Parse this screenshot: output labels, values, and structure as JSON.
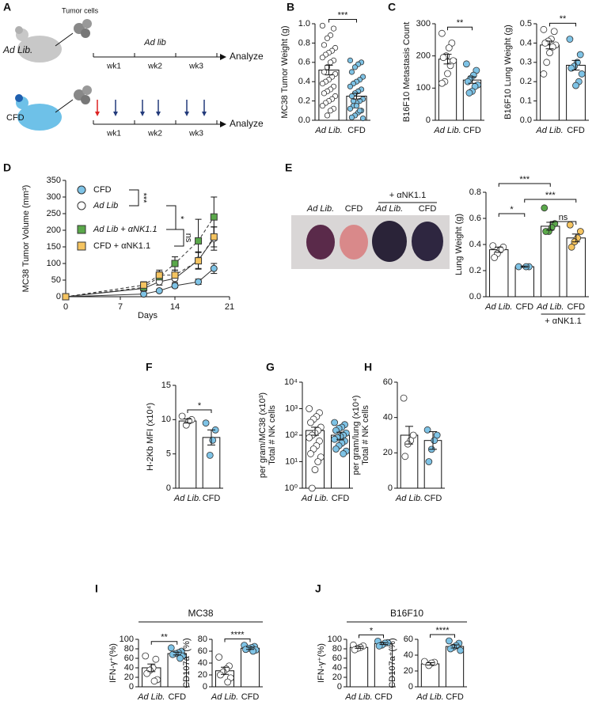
{
  "panel_labels": [
    "A",
    "B",
    "C",
    "D",
    "E",
    "F",
    "G",
    "H",
    "I",
    "J"
  ],
  "schematic": {
    "tumor_cells": "Tumor cells",
    "rows": [
      {
        "label": "Ad Lib.",
        "regimen": "Ad lib",
        "weeks": [
          "wk1",
          "wk2",
          "wk3"
        ],
        "end": "Analyze"
      },
      {
        "label": "CFD",
        "weeks": [
          "wk1",
          "wk2",
          "wk3"
        ],
        "end": "Analyze"
      }
    ]
  },
  "photo": {
    "group_label": "+ αNK1.1",
    "labels": [
      "Ad Lib.",
      "CFD",
      "Ad Lib.",
      "CFD"
    ]
  },
  "chart_data": [
    {
      "type": "bar",
      "ylabel": "MC38 Tumor Weight (g)",
      "categories": [
        "Ad Lib.",
        "CFD"
      ],
      "values": [
        0.52,
        0.25
      ],
      "errors": [
        0.05,
        0.03
      ],
      "colors": [
        "#ffffff",
        "#7ec3e6"
      ],
      "points": [
        [
          0.98,
          0.95,
          0.88,
          0.85,
          0.78,
          0.75,
          0.72,
          0.7,
          0.68,
          0.65,
          0.62,
          0.6,
          0.55,
          0.5,
          0.48,
          0.45,
          0.42,
          0.4,
          0.38,
          0.35,
          0.32,
          0.3,
          0.28,
          0.25,
          0.22,
          0.2,
          0.18,
          0.15,
          0.12,
          0.1,
          0.05
        ],
        [
          0.62,
          0.6,
          0.58,
          0.55,
          0.5,
          0.45,
          0.42,
          0.4,
          0.38,
          0.35,
          0.32,
          0.3,
          0.28,
          0.25,
          0.22,
          0.2,
          0.18,
          0.15,
          0.12,
          0.1,
          0.08,
          0.05,
          0.03,
          0.02,
          0.1,
          0.15,
          0.2
        ]
      ],
      "ylim": [
        0,
        1.0
      ],
      "yticks": [
        {
          "value": 0,
          "label": "0.0"
        },
        0.2,
        0.4,
        0.6,
        0.8,
        {
          "value": 1,
          "label": "1.0"
        }
      ],
      "significance": [
        "***"
      ]
    },
    {
      "type": "bar",
      "ylabel": "B16F10 Metastasis Count",
      "categories": [
        "Ad Lib.",
        "CFD"
      ],
      "values": [
        190,
        125
      ],
      "errors": [
        15,
        10
      ],
      "colors": [
        "#ffffff",
        "#7ec3e6"
      ],
      "points": [
        [
          270,
          240,
          225,
          200,
          195,
          185,
          170,
          145,
          120,
          115
        ],
        [
          175,
          155,
          140,
          130,
          120,
          110,
          105,
          90,
          85
        ]
      ],
      "ylim": [
        0,
        300
      ],
      "yticks": [
        0,
        100,
        200,
        300
      ],
      "significance": [
        "**"
      ]
    },
    {
      "type": "bar",
      "ylabel": "B16F10 Lung Weight (g)",
      "categories": [
        "Ad Lib.",
        "CFD"
      ],
      "values": [
        0.39,
        0.285
      ],
      "errors": [
        0.02,
        0.025
      ],
      "colors": [
        "#ffffff",
        "#7ec3e6"
      ],
      "points": [
        [
          0.47,
          0.46,
          0.42,
          0.41,
          0.4,
          0.39,
          0.38,
          0.35,
          0.3,
          0.24
        ],
        [
          0.42,
          0.34,
          0.3,
          0.28,
          0.27,
          0.24,
          0.2,
          0.18
        ]
      ],
      "ylim": [
        0,
        0.5
      ],
      "yticks": [
        {
          "value": 0,
          "label": "0.0"
        },
        0.1,
        0.2,
        0.3,
        0.4,
        0.5
      ],
      "significance": [
        "**"
      ]
    },
    {
      "type": "line",
      "ylabel": "MC38 Tumor Volume (mm³)",
      "xlabel": "Days",
      "x": [
        0,
        10,
        12,
        14,
        17,
        19
      ],
      "series": [
        {
          "name": "CFD",
          "color": "#7ec3e6",
          "marker": "circle",
          "linestyle": "solid",
          "values": [
            0,
            8,
            18,
            33,
            45,
            85
          ],
          "errors": [
            0,
            3,
            4,
            6,
            8,
            15
          ]
        },
        {
          "name": "Ad Lib",
          "color": "#ffffff",
          "marker": "circle",
          "linestyle": "solid",
          "values": [
            0,
            25,
            45,
            55,
            110,
            175
          ],
          "errors": [
            0,
            8,
            10,
            12,
            25,
            35
          ]
        },
        {
          "name": "Ad Lib + αNK1.1",
          "color": "#5aa84a",
          "marker": "square",
          "linestyle": "dashed",
          "values": [
            0,
            28,
            60,
            100,
            168,
            240
          ],
          "errors": [
            0,
            8,
            15,
            20,
            65,
            60
          ]
        },
        {
          "name": "CFD + αNK1.1",
          "color": "#f5c460",
          "marker": "square",
          "linestyle": "dashed",
          "values": [
            0,
            35,
            65,
            65,
            108,
            180
          ],
          "errors": [
            0,
            10,
            15,
            15,
            25,
            30
          ]
        }
      ],
      "xlim": [
        0,
        21
      ],
      "xticks": [
        0,
        7,
        14,
        21
      ],
      "ylim": [
        0,
        350
      ],
      "yticks": [
        0,
        50,
        100,
        150,
        200,
        250,
        300,
        350
      ],
      "significance": [
        "***",
        "*",
        "ns"
      ]
    },
    {
      "type": "bar",
      "ylabel": "Lung Weight (g)",
      "categories": [
        "Ad Lib.",
        "CFD",
        "Ad Lib.",
        "CFD"
      ],
      "group_label": "+ αNK1.1",
      "values": [
        0.36,
        0.23,
        0.54,
        0.45
      ],
      "errors": [
        0.02,
        0.005,
        0.03,
        0.03
      ],
      "colors": [
        "#ffffff",
        "#7ec3e6",
        "#5aa84a",
        "#f5c460"
      ],
      "points": [
        [
          0.39,
          0.38,
          0.36,
          0.33,
          0.3
        ],
        [
          0.23,
          0.23,
          0.23
        ],
        [
          0.68,
          0.56,
          0.53,
          0.5,
          0.5
        ],
        [
          0.55,
          0.5,
          0.45,
          0.42,
          0.38
        ]
      ],
      "ylim": [
        0,
        0.8
      ],
      "yticks": [
        {
          "value": 0,
          "label": "0.0"
        },
        0.2,
        0.4,
        0.6,
        0.8
      ],
      "significance": [
        "***",
        "*",
        "***",
        "ns"
      ]
    },
    {
      "type": "bar",
      "ylabel": "H-2Kb MFI (x10⁴)",
      "categories": [
        "Ad Lib.",
        "CFD"
      ],
      "values": [
        9.8,
        7.4
      ],
      "errors": [
        0.3,
        1.1
      ],
      "colors": [
        "#ffffff",
        "#7ec3e6"
      ],
      "points": [
        [
          10.5,
          10,
          9.8,
          9.2
        ],
        [
          9.5,
          8.5,
          7,
          4.8
        ]
      ],
      "ylim": [
        0,
        15
      ],
      "yticks": [
        0,
        5,
        10,
        15
      ],
      "significance": [
        "*"
      ]
    },
    {
      "type": "bar",
      "ylabel": [
        "Total # NK cells",
        "per gram/MC38 (x10³)"
      ],
      "log_scale": true,
      "categories": [
        "Ad Lib.",
        "CFD"
      ],
      "values": [
        150,
        100
      ],
      "errors": [
        50,
        30
      ],
      "colors": [
        "#ffffff",
        "#7ec3e6"
      ],
      "points": [
        [
          1000,
          700,
          500,
          400,
          300,
          200,
          150,
          120,
          100,
          80,
          60,
          40,
          30,
          20,
          15,
          10,
          5,
          1
        ],
        [
          300,
          250,
          200,
          180,
          150,
          120,
          100,
          90,
          80,
          70,
          60,
          50,
          40,
          30,
          25,
          20
        ]
      ],
      "ylim": [
        1,
        10000
      ],
      "yticks": [
        {
          "value": 1,
          "label": "10⁰"
        },
        {
          "value": 10,
          "label": "10¹"
        },
        {
          "value": 100,
          "label": "10²"
        },
        {
          "value": 1000,
          "label": "10³"
        },
        {
          "value": 10000,
          "label": "10⁴"
        }
      ]
    },
    {
      "type": "bar",
      "ylabel": [
        "Total # NK cells",
        "per gram/lung (x10⁴)"
      ],
      "categories": [
        "Ad Lib.",
        "CFD"
      ],
      "values": [
        30,
        27
      ],
      "errors": [
        5,
        5
      ],
      "colors": [
        "#ffffff",
        "#7ec3e6"
      ],
      "points": [
        [
          51,
          30,
          27,
          25,
          18
        ],
        [
          33,
          30,
          27,
          22,
          15
        ]
      ],
      "ylim": [
        0,
        60
      ],
      "yticks": [
        0,
        20,
        40,
        60
      ]
    },
    {
      "type": "bar",
      "ylabel": "IFN-γ⁺(%)",
      "group_title": "MC38",
      "categories": [
        "Ad Lib.",
        "CFD"
      ],
      "values": [
        40,
        70
      ],
      "errors": [
        8,
        3
      ],
      "colors": [
        "#ffffff",
        "#7ec3e6"
      ],
      "points": [
        [
          65,
          58,
          40,
          35,
          28,
          15,
          12
        ],
        [
          82,
          75,
          72,
          70,
          68,
          65,
          60
        ]
      ],
      "ylim": [
        0,
        100
      ],
      "yticks": [
        0,
        20,
        40,
        60,
        80,
        100
      ],
      "significance": [
        "**"
      ]
    },
    {
      "type": "bar",
      "ylabel": "CD107a⁺(%)",
      "categories": [
        "Ad Lib.",
        "CFD"
      ],
      "values": [
        27,
        65
      ],
      "errors": [
        6,
        2
      ],
      "colors": [
        "#ffffff",
        "#7ec3e6"
      ],
      "points": [
        [
          50,
          35,
          30,
          25,
          20,
          15,
          8
        ],
        [
          70,
          68,
          66,
          65,
          63,
          62,
          60
        ]
      ],
      "ylim": [
        0,
        80
      ],
      "yticks": [
        0,
        20,
        40,
        60,
        80
      ],
      "significance": [
        "****"
      ]
    },
    {
      "type": "bar",
      "ylabel": "IFN-γ⁺(%)",
      "group_title": "B16F10",
      "categories": [
        "Ad Lib.",
        "CFD"
      ],
      "values": [
        83,
        91
      ],
      "errors": [
        2,
        2
      ],
      "colors": [
        "#ffffff",
        "#7ec3e6"
      ],
      "points": [
        [
          88,
          86,
          83,
          81,
          78
        ],
        [
          96,
          93,
          92,
          88,
          86
        ]
      ],
      "ylim": [
        0,
        100
      ],
      "yticks": [
        0,
        20,
        40,
        60,
        80,
        100
      ],
      "significance": [
        "*"
      ]
    },
    {
      "type": "bar",
      "ylabel": "CD107a⁺(%)",
      "categories": [
        "Ad Lib.",
        "CFD"
      ],
      "values": [
        29,
        51
      ],
      "errors": [
        1.5,
        2
      ],
      "colors": [
        "#ffffff",
        "#7ec3e6"
      ],
      "points": [
        [
          32,
          31,
          30,
          27
        ],
        [
          58,
          55,
          52,
          50,
          48,
          46
        ]
      ],
      "ylim": [
        0,
        60
      ],
      "yticks": [
        0,
        20,
        40,
        60
      ],
      "significance": [
        "****"
      ]
    }
  ]
}
